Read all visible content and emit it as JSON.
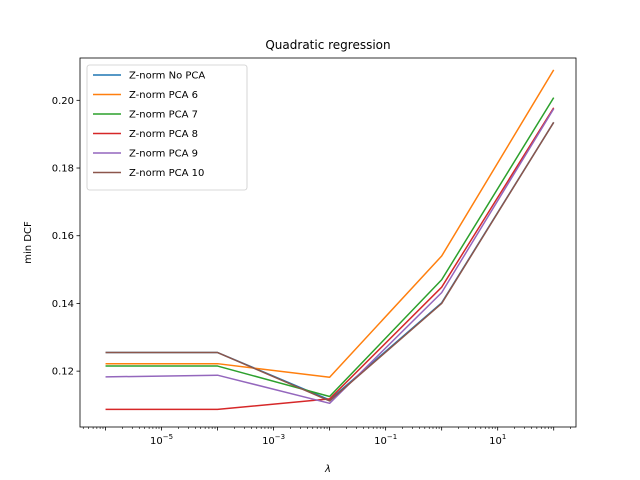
{
  "chart_data": {
    "type": "line",
    "title": "Quadratic regression",
    "xlabel": "λ",
    "ylabel": "min DCF",
    "xscale": "log",
    "xlim": [
      3.5e-07,
      250
    ],
    "ylim": [
      0.1035,
      0.2125
    ],
    "legend_position": "top-left",
    "grid": false,
    "x": [
      1e-06,
      0.0001,
      0.01,
      1,
      100
    ],
    "x_ticks": [
      {
        "value": 1e-05,
        "base": "10",
        "exp": "−5"
      },
      {
        "value": 0.001,
        "base": "10",
        "exp": "−3"
      },
      {
        "value": 0.1,
        "base": "10",
        "exp": "−1"
      },
      {
        "value": 10,
        "base": "10",
        "exp": "1"
      }
    ],
    "y_ticks": [
      "0.12",
      "0.14",
      "0.16",
      "0.18",
      "0.20"
    ],
    "series": [
      {
        "name": "Z-norm No PCA",
        "color": "#1f77b4",
        "values": [
          0.1255,
          0.1255,
          0.1115,
          0.1402,
          0.1935
        ]
      },
      {
        "name": "Z-norm PCA 6",
        "color": "#ff7f0e",
        "values": [
          0.1222,
          0.1222,
          0.1182,
          0.154,
          0.209
        ]
      },
      {
        "name": "Z-norm PCA 7",
        "color": "#2ca02c",
        "values": [
          0.1215,
          0.1215,
          0.1125,
          0.147,
          0.2008
        ]
      },
      {
        "name": "Z-norm PCA 8",
        "color": "#d62728",
        "values": [
          0.1087,
          0.1087,
          0.1118,
          0.1448,
          0.1978
        ]
      },
      {
        "name": "Z-norm PCA 9",
        "color": "#9467bd",
        "values": [
          0.1183,
          0.1188,
          0.1105,
          0.1432,
          0.1975
        ]
      },
      {
        "name": "Z-norm PCA 10",
        "color": "#8c564b",
        "values": [
          0.1255,
          0.1255,
          0.1112,
          0.14,
          0.1935
        ]
      }
    ]
  }
}
